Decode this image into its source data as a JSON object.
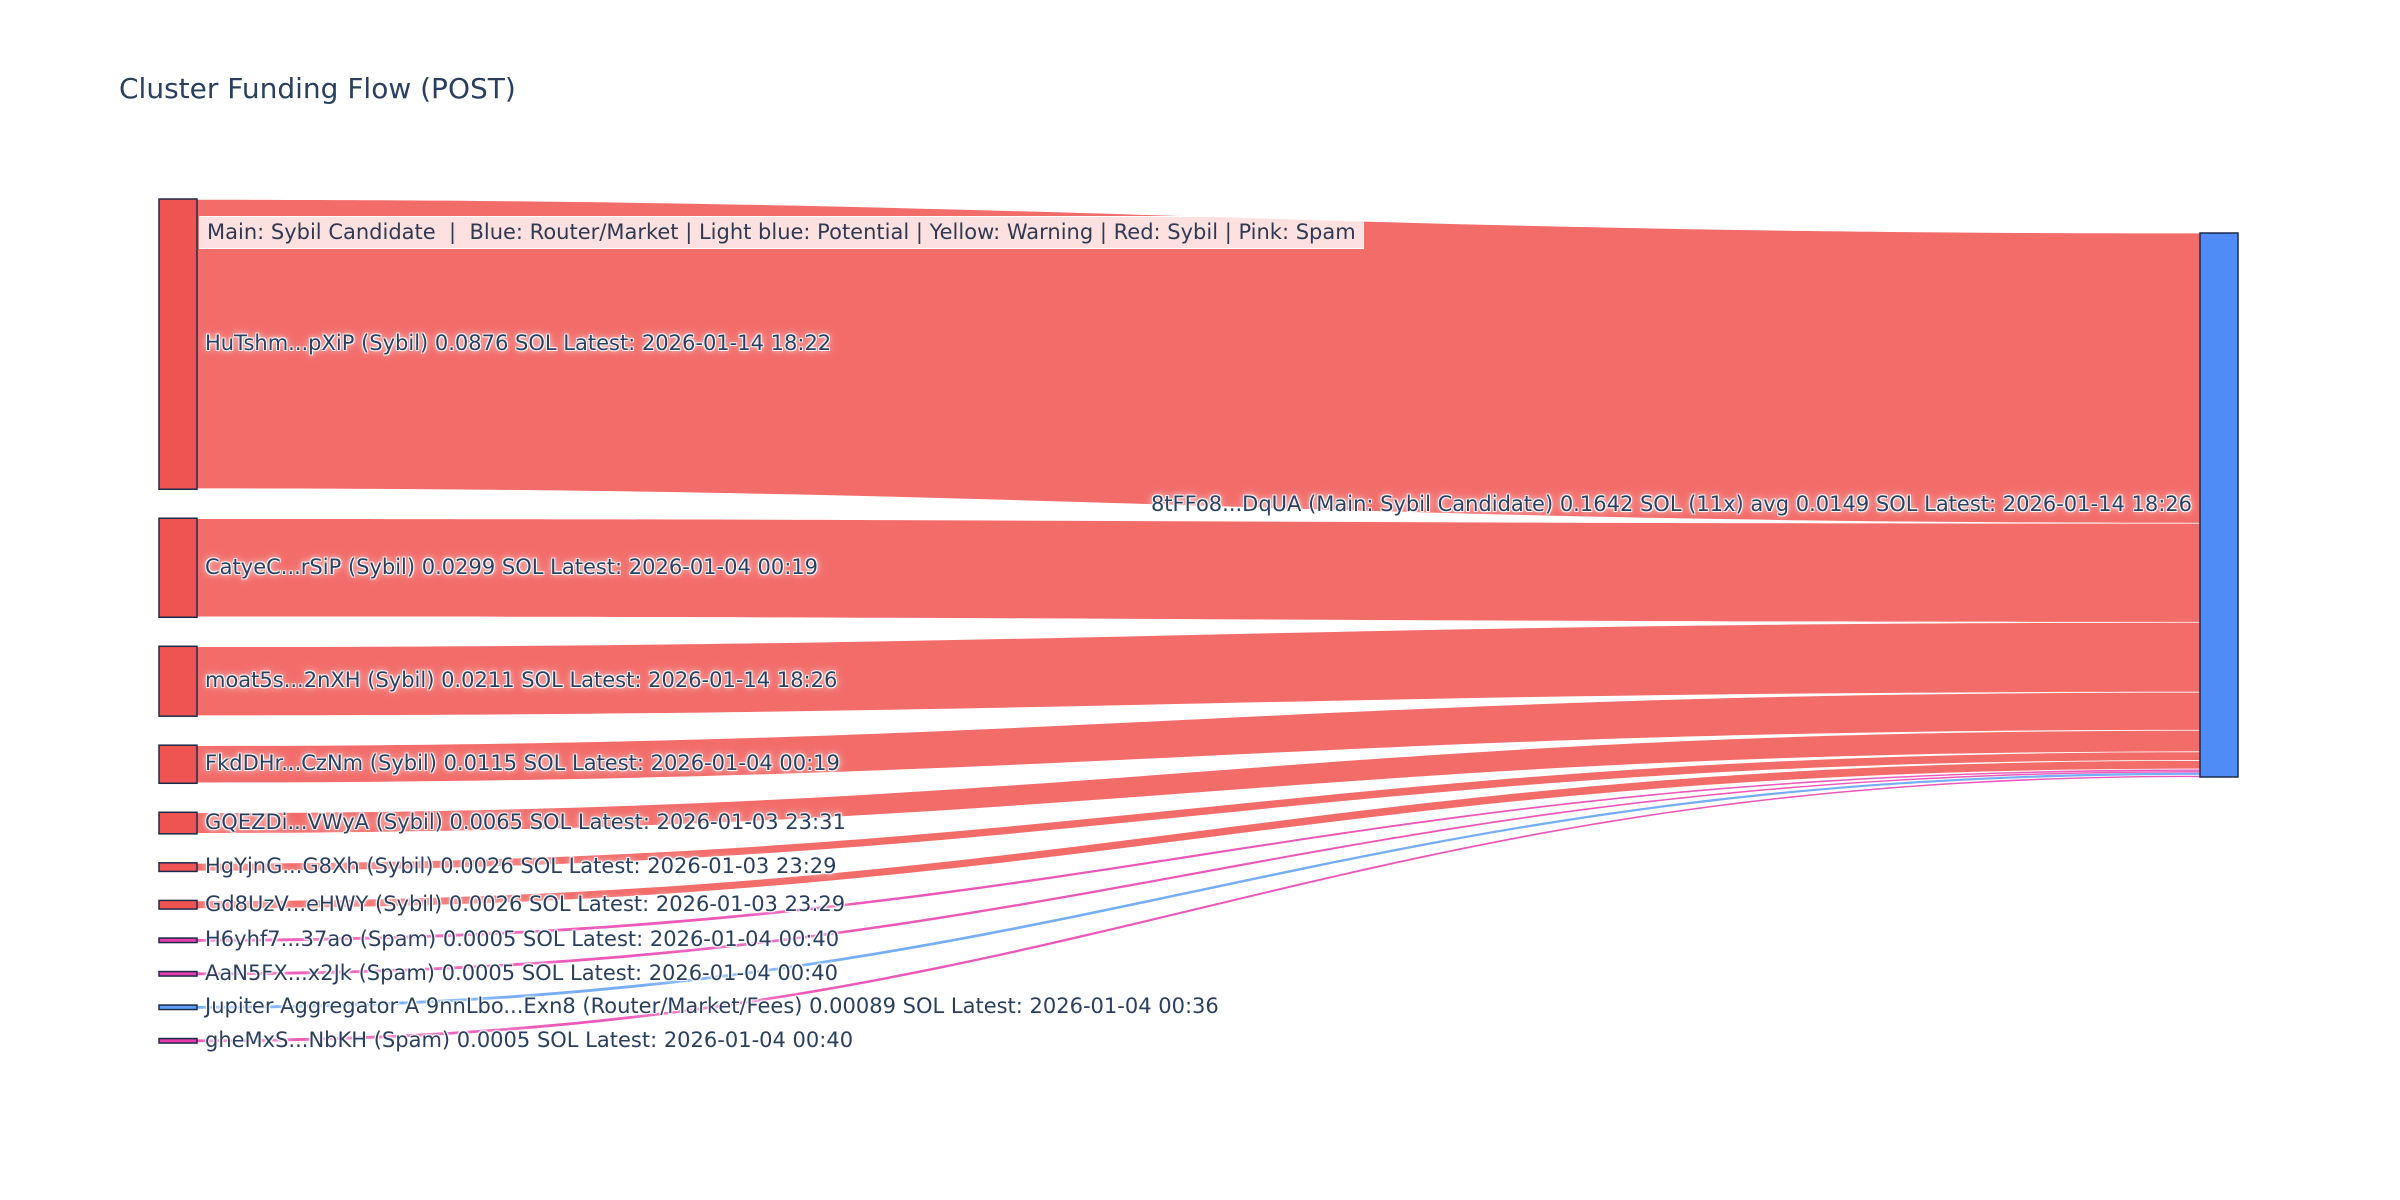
{
  "chart_data": {
    "type": "sankey",
    "title": "Cluster Funding Flow (POST)",
    "legend_note": "Main: Sybil Candidate  |  Blue: Router/Market | Light blue: Potential | Yellow: Warning | Red: Sybil | Pink: Spam",
    "unit": "SOL",
    "orientation": "horizontal",
    "target": {
      "label": "8tFFo8...DqUA (Main: Sybil Candidate) 0.1642 SOL (11x) avg 0.0149 SOL Latest: 2026-01-14 18:26",
      "wallet": "8tFFo8...DqUA",
      "category": "main",
      "total_sol": 0.1642,
      "transfer_count": 11,
      "avg_sol": 0.0149,
      "latest": "2026-01-14 18:26"
    },
    "sources": [
      {
        "label": "HuTshm...pXiP (Sybil) 0.0876 SOL Latest: 2026-01-14 18:22",
        "wallet": "HuTshm...pXiP",
        "category": "sybil",
        "value_sol": 0.0876,
        "latest": "2026-01-14 18:22"
      },
      {
        "label": "CatyeC...rSiP (Sybil) 0.0299 SOL Latest: 2026-01-04 00:19",
        "wallet": "CatyeC...rSiP",
        "category": "sybil",
        "value_sol": 0.0299,
        "latest": "2026-01-04 00:19"
      },
      {
        "label": "moat5s...2nXH (Sybil) 0.0211 SOL Latest: 2026-01-14 18:26",
        "wallet": "moat5s...2nXH",
        "category": "sybil",
        "value_sol": 0.0211,
        "latest": "2026-01-14 18:26"
      },
      {
        "label": "FkdDHr...CzNm (Sybil) 0.0115 SOL Latest: 2026-01-04 00:19",
        "wallet": "FkdDHr...CzNm",
        "category": "sybil",
        "value_sol": 0.0115,
        "latest": "2026-01-04 00:19"
      },
      {
        "label": "GQEZDi...VWyA (Sybil) 0.0065 SOL Latest: 2026-01-03 23:31",
        "wallet": "GQEZDi...VWyA",
        "category": "sybil",
        "value_sol": 0.0065,
        "latest": "2026-01-03 23:31"
      },
      {
        "label": "HgYjnG...G8Xh (Sybil) 0.0026 SOL Latest: 2026-01-03 23:29",
        "wallet": "HgYjnG...G8Xh",
        "category": "sybil",
        "value_sol": 0.0026,
        "latest": "2026-01-03 23:29"
      },
      {
        "label": "Gd8UzV...eHWY (Sybil) 0.0026 SOL Latest: 2026-01-03 23:29",
        "wallet": "Gd8UzV...eHWY",
        "category": "sybil",
        "value_sol": 0.0026,
        "latest": "2026-01-03 23:29"
      },
      {
        "label": "H6yhf7...37ao (Spam) 0.0005 SOL Latest: 2026-01-04 00:40",
        "wallet": "H6yhf7...37ao",
        "category": "spam",
        "value_sol": 0.0005,
        "latest": "2026-01-04 00:40"
      },
      {
        "label": "AaN5FX...x2Jk (Spam) 0.0005 SOL Latest: 2026-01-04 00:40",
        "wallet": "AaN5FX...x2Jk",
        "category": "spam",
        "value_sol": 0.0005,
        "latest": "2026-01-04 00:40"
      },
      {
        "label": "Jupiter Aggregator A 9nnLbo...Exn8 (Router/Market/Fees) 0.00089 SOL Latest: 2026-01-04 00:36",
        "wallet": "9nnLbo...Exn8",
        "category": "router",
        "value_sol": 0.00089,
        "latest": "2026-01-04 00:36"
      },
      {
        "label": "gheMxS...NbKH (Spam) 0.0005 SOL Latest: 2026-01-04 00:40",
        "wallet": "gheMxS...NbKH",
        "category": "spam",
        "value_sol": 0.0005,
        "latest": "2026-01-04 00:40"
      }
    ],
    "colors": {
      "sybil": "#f05452",
      "spam": "#e93cae",
      "router": "#5e9ff5",
      "main": "#4f8cf5",
      "node_border": "#1c2b4a",
      "text": "#2a3f5f"
    }
  }
}
